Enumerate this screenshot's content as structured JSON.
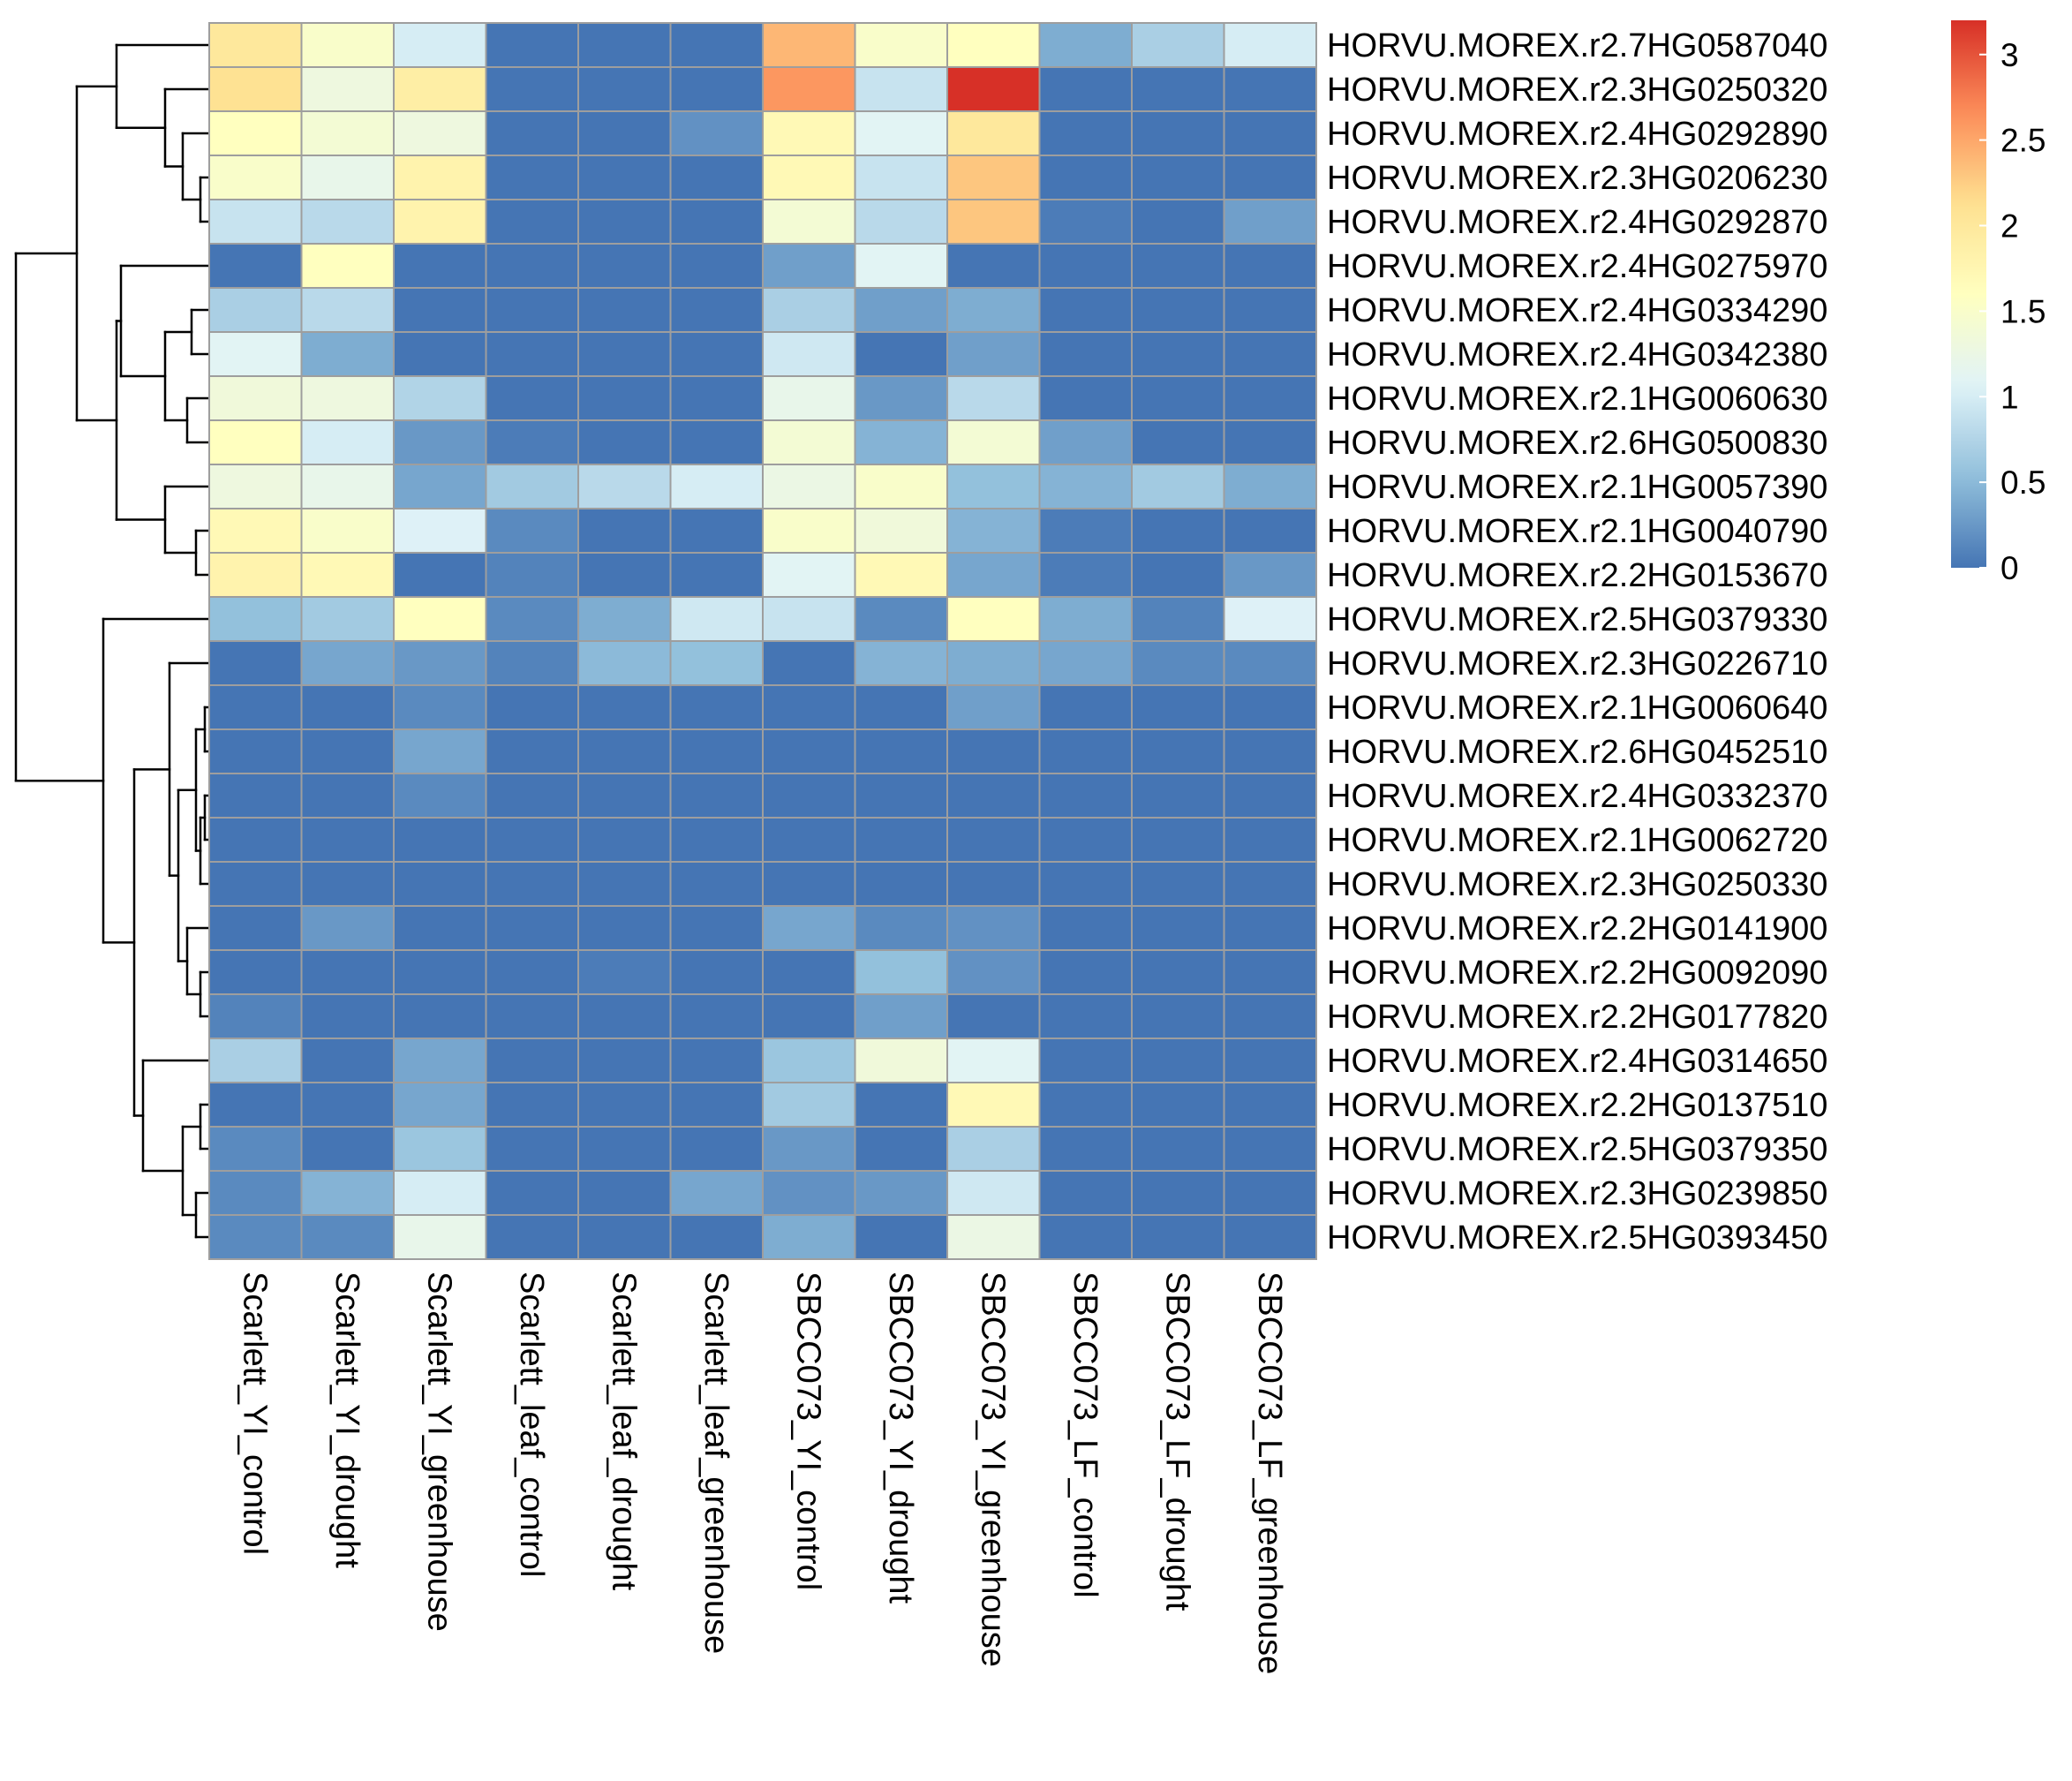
{
  "chart_data": {
    "type": "heatmap",
    "title": "",
    "xlabel": "",
    "ylabel": "",
    "columns": [
      "Scarlett_YI_control",
      "Scarlett_YI_drought",
      "Scarlett_YI_greenhouse",
      "Scarlett_leaf_control",
      "Scarlett_leaf_drought",
      "Scarlett_leaf_greenhouse",
      "SBCC073_YI_control",
      "SBCC073_YI_drought",
      "SBCC073_YI_greenhouse",
      "SBCC073_LF_control",
      "SBCC073_LF_drought",
      "SBCC073_LF_greenhouse"
    ],
    "rows": [
      "HORVU.MOREX.r2.7HG0587040",
      "HORVU.MOREX.r2.3HG0250320",
      "HORVU.MOREX.r2.4HG0292890",
      "HORVU.MOREX.r2.3HG0206230",
      "HORVU.MOREX.r2.4HG0292870",
      "HORVU.MOREX.r2.4HG0275970",
      "HORVU.MOREX.r2.4HG0334290",
      "HORVU.MOREX.r2.4HG0342380",
      "HORVU.MOREX.r2.1HG0060630",
      "HORVU.MOREX.r2.6HG0500830",
      "HORVU.MOREX.r2.1HG0057390",
      "HORVU.MOREX.r2.1HG0040790",
      "HORVU.MOREX.r2.2HG0153670",
      "HORVU.MOREX.r2.5HG0379330",
      "HORVU.MOREX.r2.3HG0226710",
      "HORVU.MOREX.r2.1HG0060640",
      "HORVU.MOREX.r2.6HG0452510",
      "HORVU.MOREX.r2.4HG0332370",
      "HORVU.MOREX.r2.1HG0062720",
      "HORVU.MOREX.r2.3HG0250330",
      "HORVU.MOREX.r2.2HG0141900",
      "HORVU.MOREX.r2.2HG0092090",
      "HORVU.MOREX.r2.2HG0177820",
      "HORVU.MOREX.r2.4HG0314650",
      "HORVU.MOREX.r2.2HG0137510",
      "HORVU.MOREX.r2.5HG0379350",
      "HORVU.MOREX.r2.3HG0239850",
      "HORVU.MOREX.r2.5HG0393450"
    ],
    "values": [
      [
        2.0,
        1.5,
        1.0,
        0.0,
        0.0,
        0.0,
        2.4,
        1.5,
        1.6,
        0.4,
        0.7,
        1.0
      ],
      [
        2.1,
        1.3,
        1.9,
        0.0,
        0.0,
        0.0,
        2.6,
        0.9,
        3.2,
        0.0,
        0.0,
        0.0
      ],
      [
        1.6,
        1.4,
        1.3,
        0.0,
        0.0,
        0.2,
        1.7,
        1.1,
        2.0,
        0.0,
        0.0,
        0.0
      ],
      [
        1.5,
        1.2,
        1.8,
        0.0,
        0.0,
        0.0,
        1.7,
        0.9,
        2.3,
        0.0,
        0.0,
        0.0
      ],
      [
        0.9,
        0.8,
        1.8,
        0.0,
        0.0,
        0.0,
        1.4,
        0.8,
        2.3,
        0.05,
        0.0,
        0.3
      ],
      [
        0.0,
        1.6,
        0.0,
        0.0,
        0.0,
        0.0,
        0.3,
        1.1,
        0.0,
        0.0,
        0.0,
        0.0
      ],
      [
        0.7,
        0.8,
        0.0,
        0.0,
        0.0,
        0.0,
        0.7,
        0.3,
        0.4,
        0.0,
        0.0,
        0.0
      ],
      [
        1.1,
        0.4,
        0.0,
        0.0,
        0.0,
        0.0,
        0.95,
        0.0,
        0.3,
        0.0,
        0.0,
        0.0
      ],
      [
        1.35,
        1.3,
        0.75,
        0.0,
        0.0,
        0.0,
        1.2,
        0.25,
        0.8,
        0.0,
        0.0,
        0.0
      ],
      [
        1.6,
        1.0,
        0.25,
        0.05,
        0.0,
        0.0,
        1.4,
        0.45,
        1.4,
        0.3,
        0.0,
        0.0
      ],
      [
        1.3,
        1.2,
        0.35,
        0.65,
        0.8,
        1.0,
        1.25,
        1.5,
        0.55,
        0.45,
        0.65,
        0.4
      ],
      [
        1.7,
        1.5,
        1.05,
        0.15,
        0.0,
        0.0,
        1.5,
        1.35,
        0.45,
        0.05,
        0.0,
        0.0
      ],
      [
        1.8,
        1.7,
        0.0,
        0.1,
        0.0,
        0.0,
        1.1,
        1.7,
        0.35,
        0.05,
        0.0,
        0.25
      ],
      [
        0.55,
        0.65,
        1.6,
        0.15,
        0.4,
        0.95,
        0.9,
        0.15,
        1.6,
        0.4,
        0.1,
        1.05
      ],
      [
        0.0,
        0.35,
        0.25,
        0.1,
        0.5,
        0.55,
        0.0,
        0.45,
        0.4,
        0.35,
        0.15,
        0.15
      ],
      [
        0.0,
        0.0,
        0.15,
        0.0,
        0.0,
        0.0,
        0.0,
        0.0,
        0.3,
        0.0,
        0.0,
        0.0
      ],
      [
        0.0,
        0.0,
        0.35,
        0.0,
        0.0,
        0.0,
        0.0,
        0.0,
        0.0,
        0.0,
        0.0,
        0.0
      ],
      [
        0.0,
        0.0,
        0.15,
        0.0,
        0.0,
        0.0,
        0.0,
        0.0,
        0.0,
        0.0,
        0.0,
        0.0
      ],
      [
        0.0,
        0.0,
        0.0,
        0.0,
        0.0,
        0.0,
        0.0,
        0.0,
        0.0,
        0.0,
        0.0,
        0.0
      ],
      [
        0.0,
        0.0,
        0.0,
        0.0,
        0.0,
        0.0,
        0.0,
        0.0,
        0.0,
        0.0,
        0.0,
        0.0
      ],
      [
        0.0,
        0.25,
        0.0,
        0.0,
        0.0,
        0.0,
        0.35,
        0.15,
        0.2,
        0.0,
        0.0,
        0.0
      ],
      [
        0.0,
        0.0,
        0.0,
        0.0,
        0.05,
        0.0,
        0.0,
        0.55,
        0.2,
        0.0,
        0.0,
        0.0
      ],
      [
        0.1,
        0.0,
        0.0,
        0.0,
        0.0,
        0.0,
        0.0,
        0.3,
        0.0,
        0.0,
        0.0,
        0.0
      ],
      [
        0.7,
        0.0,
        0.35,
        0.0,
        0.0,
        0.0,
        0.6,
        1.35,
        1.1,
        0.0,
        0.0,
        0.0
      ],
      [
        0.0,
        0.0,
        0.35,
        0.0,
        0.0,
        0.0,
        0.65,
        0.0,
        1.7,
        0.0,
        0.0,
        0.0
      ],
      [
        0.15,
        0.0,
        0.6,
        0.0,
        0.0,
        0.0,
        0.25,
        0.0,
        0.7,
        0.0,
        0.0,
        0.0
      ],
      [
        0.15,
        0.45,
        1.0,
        0.0,
        0.0,
        0.35,
        0.2,
        0.25,
        0.95,
        0.0,
        0.0,
        0.0
      ],
      [
        0.15,
        0.15,
        1.2,
        0.0,
        0.0,
        0.0,
        0.4,
        0.0,
        1.25,
        0.0,
        0.0,
        0.0
      ]
    ],
    "color_scale": {
      "min": 0,
      "max": 3.2,
      "ticks": [
        0,
        0.5,
        1,
        1.5,
        2,
        2.5,
        3
      ],
      "colors": [
        "#4575B4",
        "#91BFDB",
        "#E0F3F8",
        "#FFFFBF",
        "#FEE090",
        "#FC8D59",
        "#D73027"
      ],
      "legend_placement": "top-right"
    },
    "grid": true,
    "cell_border_color": "#9E9E9E",
    "row_dendrogram": true,
    "column_dendrogram": false
  }
}
